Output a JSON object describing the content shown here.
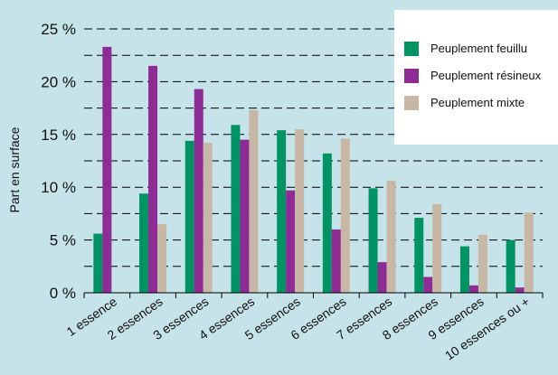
{
  "chart_data": {
    "type": "bar",
    "ylabel": "Part en surface",
    "xlabel": "",
    "title": "",
    "ylim": [
      0,
      25
    ],
    "yticks": [
      0,
      5,
      10,
      15,
      20,
      25
    ],
    "ytick_labels": [
      "0 %",
      "5 %",
      "10 %",
      "15 %",
      "20 %",
      "25 %"
    ],
    "grid": "dashed horizontal",
    "legend_position": "top-right",
    "categories": [
      "1 essence",
      "2 essences",
      "3 essences",
      "4 essences",
      "5 essences",
      "6 essences",
      "7 essences",
      "8 essences",
      "9 essences",
      "10 essences ou +"
    ],
    "series": [
      {
        "name": "Peuplement feuillu",
        "color": "#009464",
        "values": [
          5.6,
          9.4,
          14.4,
          15.9,
          15.4,
          13.2,
          9.9,
          7.1,
          4.4,
          5.0
        ]
      },
      {
        "name": "Peuplement résineux",
        "color": "#8f2b94",
        "values": [
          23.3,
          21.5,
          19.3,
          14.5,
          9.7,
          6.0,
          2.9,
          1.5,
          0.7,
          0.5
        ]
      },
      {
        "name": "Peuplement mixte",
        "color": "#c8b7a4",
        "values": [
          0,
          6.5,
          14.2,
          17.3,
          15.5,
          14.6,
          10.6,
          8.4,
          5.5,
          7.6
        ]
      }
    ]
  }
}
